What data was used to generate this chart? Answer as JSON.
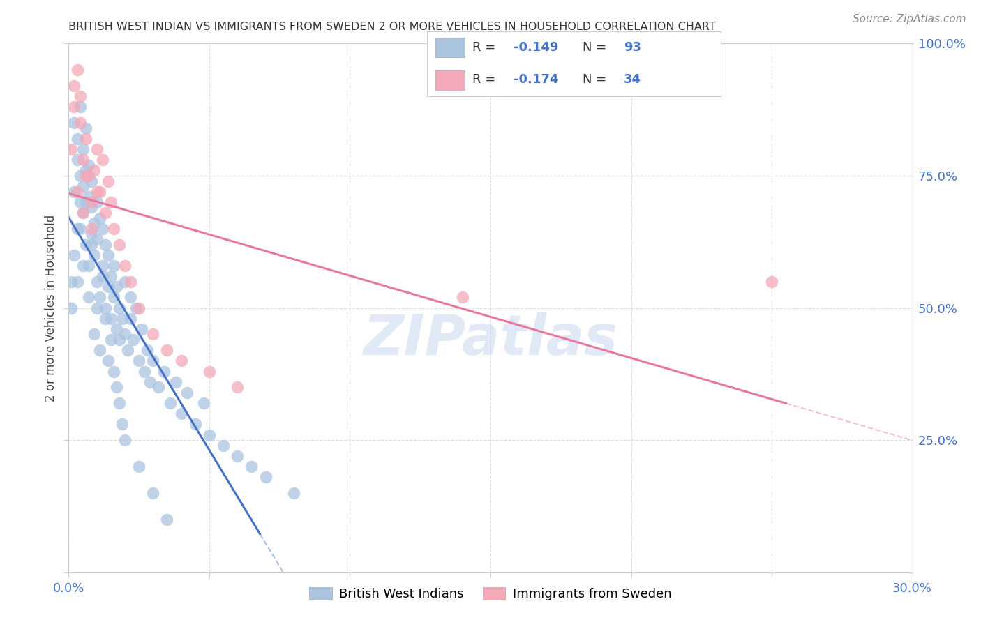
{
  "title": "BRITISH WEST INDIAN VS IMMIGRANTS FROM SWEDEN 2 OR MORE VEHICLES IN HOUSEHOLD CORRELATION CHART",
  "source": "Source: ZipAtlas.com",
  "ylabel": "2 or more Vehicles in Household",
  "xmin": 0.0,
  "xmax": 0.3,
  "ymin": 0.0,
  "ymax": 1.0,
  "blue_R": -0.149,
  "blue_N": 93,
  "pink_R": -0.174,
  "pink_N": 34,
  "blue_color": "#aac4e0",
  "pink_color": "#f4a8b8",
  "blue_line_color": "#4472c4",
  "pink_line_color": "#e878a0",
  "watermark_color": "#c8d8ee",
  "watermark_text": "ZIPatlas",
  "legend_label_blue": "British West Indians",
  "legend_label_pink": "Immigrants from Sweden",
  "background_color": "#ffffff",
  "grid_color": "#dddddd",
  "title_color": "#333333",
  "tick_color": "#4472c4",
  "source_color": "#888888",
  "blue_x": [
    0.001,
    0.002,
    0.002,
    0.003,
    0.003,
    0.003,
    0.004,
    0.004,
    0.004,
    0.005,
    0.005,
    0.005,
    0.006,
    0.006,
    0.006,
    0.007,
    0.007,
    0.007,
    0.008,
    0.008,
    0.008,
    0.009,
    0.009,
    0.01,
    0.01,
    0.01,
    0.011,
    0.011,
    0.012,
    0.012,
    0.013,
    0.013,
    0.014,
    0.014,
    0.015,
    0.015,
    0.016,
    0.016,
    0.017,
    0.017,
    0.018,
    0.018,
    0.019,
    0.02,
    0.02,
    0.021,
    0.022,
    0.022,
    0.023,
    0.024,
    0.025,
    0.026,
    0.027,
    0.028,
    0.029,
    0.03,
    0.032,
    0.034,
    0.036,
    0.038,
    0.04,
    0.042,
    0.045,
    0.048,
    0.05,
    0.055,
    0.06,
    0.065,
    0.07,
    0.08,
    0.001,
    0.002,
    0.003,
    0.004,
    0.005,
    0.006,
    0.007,
    0.008,
    0.009,
    0.01,
    0.011,
    0.012,
    0.013,
    0.014,
    0.015,
    0.016,
    0.017,
    0.018,
    0.019,
    0.02,
    0.025,
    0.03,
    0.035
  ],
  "blue_y": [
    0.55,
    0.72,
    0.85,
    0.78,
    0.65,
    0.82,
    0.7,
    0.75,
    0.88,
    0.68,
    0.73,
    0.8,
    0.62,
    0.76,
    0.84,
    0.58,
    0.71,
    0.77,
    0.64,
    0.69,
    0.74,
    0.6,
    0.66,
    0.55,
    0.63,
    0.7,
    0.52,
    0.67,
    0.58,
    0.65,
    0.5,
    0.62,
    0.54,
    0.6,
    0.48,
    0.56,
    0.52,
    0.58,
    0.46,
    0.54,
    0.5,
    0.44,
    0.48,
    0.45,
    0.55,
    0.42,
    0.48,
    0.52,
    0.44,
    0.5,
    0.4,
    0.46,
    0.38,
    0.42,
    0.36,
    0.4,
    0.35,
    0.38,
    0.32,
    0.36,
    0.3,
    0.34,
    0.28,
    0.32,
    0.26,
    0.24,
    0.22,
    0.2,
    0.18,
    0.15,
    0.5,
    0.6,
    0.55,
    0.65,
    0.58,
    0.7,
    0.52,
    0.62,
    0.45,
    0.5,
    0.42,
    0.56,
    0.48,
    0.4,
    0.44,
    0.38,
    0.35,
    0.32,
    0.28,
    0.25,
    0.2,
    0.15,
    0.1
  ],
  "pink_x": [
    0.001,
    0.002,
    0.003,
    0.004,
    0.005,
    0.006,
    0.007,
    0.008,
    0.009,
    0.01,
    0.011,
    0.012,
    0.013,
    0.014,
    0.015,
    0.016,
    0.018,
    0.02,
    0.022,
    0.025,
    0.03,
    0.035,
    0.04,
    0.05,
    0.06,
    0.002,
    0.003,
    0.004,
    0.005,
    0.006,
    0.008,
    0.01,
    0.14,
    0.25
  ],
  "pink_y": [
    0.8,
    0.88,
    0.72,
    0.85,
    0.78,
    0.82,
    0.75,
    0.7,
    0.76,
    0.8,
    0.72,
    0.78,
    0.68,
    0.74,
    0.7,
    0.65,
    0.62,
    0.58,
    0.55,
    0.5,
    0.45,
    0.42,
    0.4,
    0.38,
    0.35,
    0.92,
    0.95,
    0.9,
    0.68,
    0.75,
    0.65,
    0.72,
    0.52,
    0.55
  ]
}
